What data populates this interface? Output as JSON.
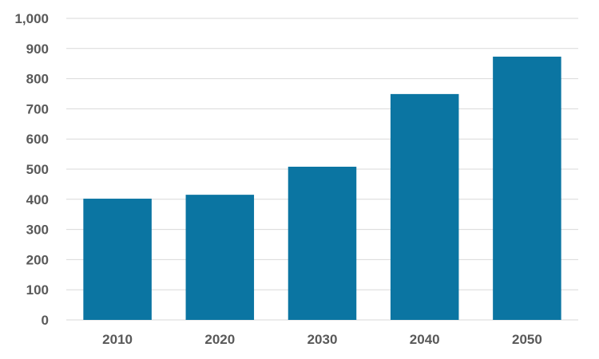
{
  "chart_data": {
    "type": "bar",
    "categories": [
      "2010",
      "2020",
      "2030",
      "2040",
      "2050"
    ],
    "values": [
      402,
      415,
      508,
      749,
      873
    ],
    "ylim": [
      0,
      1000
    ],
    "yticks": [
      0,
      100,
      200,
      300,
      400,
      500,
      600,
      700,
      800,
      900,
      1000
    ],
    "ytick_labels": [
      "0",
      "100",
      "200",
      "300",
      "400",
      "500",
      "600",
      "700",
      "800",
      "900",
      "1,000"
    ],
    "grid": true,
    "legend": "none",
    "bar_color": "#0b75a2",
    "grid_color": "#d9d9d9",
    "label_color": "#595959"
  }
}
